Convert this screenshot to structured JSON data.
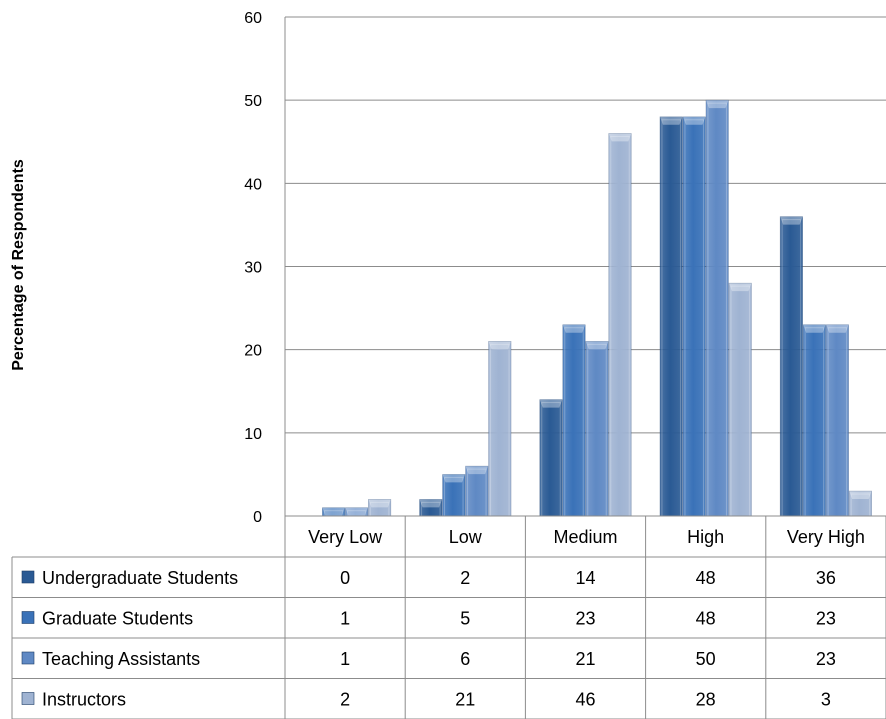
{
  "chart_data": {
    "type": "bar",
    "ylabel": "Percentage of Respondents",
    "xlabel": "",
    "title": "",
    "ylim": [
      0,
      60
    ],
    "yticks": [
      0,
      10,
      20,
      30,
      40,
      50,
      60
    ],
    "grid": true,
    "legend": "data-table-below",
    "categories": [
      "Very Low",
      "Low",
      "Medium",
      "High",
      "Very High"
    ],
    "series": [
      {
        "name": "Undergraduate Students",
        "values": [
          0,
          2,
          14,
          48,
          36
        ],
        "color": "#2a5a94"
      },
      {
        "name": "Graduate Students",
        "values": [
          1,
          5,
          23,
          48,
          23
        ],
        "color": "#3a72b8"
      },
      {
        "name": "Teaching Assistants",
        "values": [
          1,
          6,
          21,
          50,
          23
        ],
        "color": "#5f89c4"
      },
      {
        "name": "Instructors",
        "values": [
          2,
          21,
          46,
          28,
          3
        ],
        "color": "#9fb3d2"
      }
    ]
  }
}
